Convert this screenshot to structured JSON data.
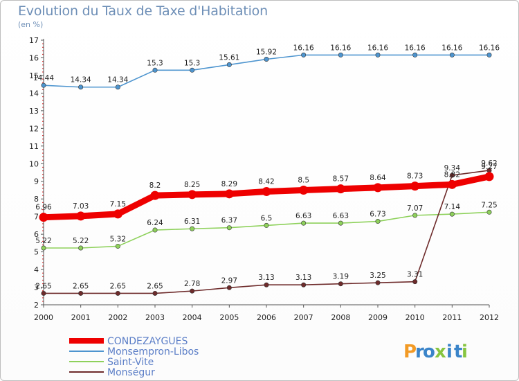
{
  "header": {
    "title": "Evolution du Taux de Taxe d'Habitation",
    "unit": "(en %)"
  },
  "logo": {
    "letters": [
      "P",
      "r",
      "o",
      "x",
      "i",
      "t",
      "i"
    ],
    "colors": [
      "#f29a25",
      "#3a84c9",
      "#3a84c9",
      "#87c540",
      "#3a84c9",
      "#3a84c9",
      "#87c540"
    ]
  },
  "chart_data": {
    "type": "line",
    "title": "Evolution du Taux de Taxe d'Habitation",
    "ylabel": "(en %)",
    "xlabel": "",
    "ylim": [
      2,
      17
    ],
    "yticks": [
      2,
      3,
      4,
      5,
      6,
      7,
      8,
      9,
      10,
      11,
      12,
      13,
      14,
      15,
      16,
      17
    ],
    "x": [
      "2000",
      "2001",
      "2002",
      "2003",
      "2004",
      "2005",
      "2006",
      "2007",
      "2008",
      "2009",
      "2010",
      "2011",
      "2012"
    ],
    "grid": false,
    "legend_position": "bottom-left",
    "series": [
      {
        "name": "CONDEZAYGUES",
        "color": "#ee0000",
        "values": [
          6.96,
          7.03,
          7.15,
          8.2,
          8.25,
          8.29,
          8.42,
          8.5,
          8.57,
          8.64,
          8.73,
          8.82,
          9.27
        ],
        "labels": [
          "6.96",
          "7.03",
          "7.15",
          "8.2",
          "8.25",
          "8.29",
          "8.42",
          "8.5",
          "8.57",
          "8.64",
          "8.73",
          "8.82",
          "9.27"
        ]
      },
      {
        "name": "Monsempron-Libos",
        "color": "#4e95cf",
        "values": [
          14.44,
          14.34,
          14.34,
          15.3,
          15.3,
          15.61,
          15.92,
          16.16,
          16.16,
          16.16,
          16.16,
          16.16,
          16.16
        ],
        "labels": [
          "14.44",
          "14.34",
          "14.34",
          "15.3",
          "15.3",
          "15.61",
          "15.92",
          "16.16",
          "16.16",
          "16.16",
          "16.16",
          "16.16",
          "16.16"
        ]
      },
      {
        "name": "Saint-Vite",
        "color": "#8ed15b",
        "values": [
          5.22,
          5.22,
          5.32,
          6.24,
          6.31,
          6.37,
          6.5,
          6.63,
          6.63,
          6.73,
          7.07,
          7.14,
          7.25
        ],
        "labels": [
          "5.22",
          "5.22",
          "5.32",
          "6.24",
          "6.31",
          "6.37",
          "6.5",
          "6.63",
          "6.63",
          "6.73",
          "7.07",
          "7.14",
          "7.25"
        ]
      },
      {
        "name": "Monségur",
        "color": "#6e2b2b",
        "values": [
          2.65,
          2.65,
          2.65,
          2.65,
          2.78,
          2.97,
          3.13,
          3.13,
          3.19,
          3.25,
          3.31,
          9.34,
          9.62
        ],
        "labels": [
          "2.65",
          "2.65",
          "2.65",
          "2.65",
          "2.78",
          "2.97",
          "3.13",
          "3.13",
          "3.19",
          "3.25",
          "3.31",
          "9.34",
          "9.62"
        ]
      }
    ]
  }
}
